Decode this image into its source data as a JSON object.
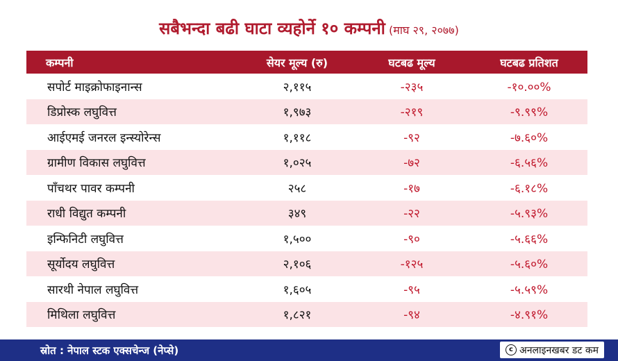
{
  "title": {
    "main": "सबैभन्दा बढी घाटा व्यहोर्ने १० कम्पनी",
    "date": "(माघ २९, २०७७)"
  },
  "table": {
    "headers": [
      "कम्पनी",
      "सेयर मूल्य (रु)",
      "घटबढ मूल्य",
      "घटबढ प्रतिशत"
    ],
    "rows": [
      {
        "name": "सपोर्ट माइक्रोफाइनान्स",
        "price": "२,११५",
        "change": "-२३५",
        "pct": "-१०.००%"
      },
      {
        "name": "डिप्रोस्क लघुवित्त",
        "price": "१,९७३",
        "change": "-२१९",
        "pct": "-९.९९%"
      },
      {
        "name": "आईएमई जनरल इन्स्योरेन्स",
        "price": "१,११८",
        "change": "-९२",
        "pct": "-७.६०%"
      },
      {
        "name": "ग्रामीण विकास लघुवित्त",
        "price": "१,०२५",
        "change": "-७२",
        "pct": "-६.५६%"
      },
      {
        "name": "पाँचथर पावर कम्पनी",
        "price": "२५८",
        "change": "-१७",
        "pct": "-६.१८%"
      },
      {
        "name": "राधी विद्युत कम्पनी",
        "price": "३४९",
        "change": "-२२",
        "pct": "-५.९३%"
      },
      {
        "name": "इन्फिनिटी लघुवित्त",
        "price": "१,५००",
        "change": "-९०",
        "pct": "-५.६६%"
      },
      {
        "name": "सूर्योदय लघुवित्त",
        "price": "२,१०६",
        "change": "-१२५",
        "pct": "-५.६०%"
      },
      {
        "name": "सारथी नेपाल लघुवित्त",
        "price": "१,६०५",
        "change": "-९५",
        "pct": "-५.५९%"
      },
      {
        "name": "मिथिला लघुवित्त",
        "price": "१,८२१",
        "change": "-९४",
        "pct": "-४.९१%"
      }
    ]
  },
  "footer": {
    "source": "स्रोत : नेपाल स्टक एक्सचेन्ज (नेप्से)",
    "credit": "अनलाइनखबर डट कम",
    "copyright_symbol": "c"
  },
  "colors": {
    "title": "#b01b2e",
    "header_bg": "#a8182c",
    "alt_row_bg": "#fbe3e6",
    "negative": "#c0182c",
    "footer_bg": "#1e2f86"
  }
}
